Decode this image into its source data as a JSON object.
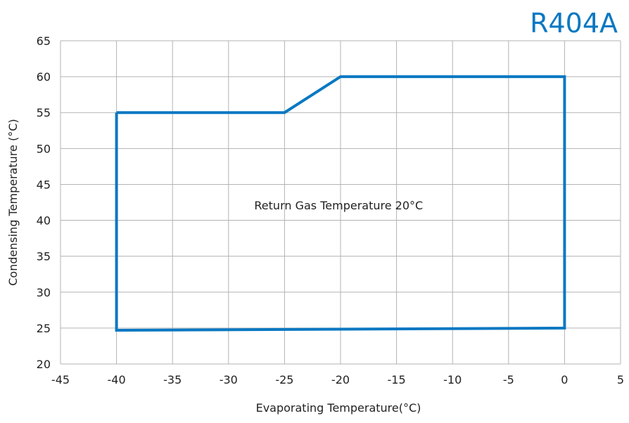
{
  "chart_data": {
    "type": "line",
    "title": "R404A",
    "xlabel": "Evaporating Temperature(°C)",
    "ylabel": "Condensing Temperature (°C)",
    "xlim": [
      -45,
      5
    ],
    "ylim": [
      20,
      65
    ],
    "x_ticks": [
      -45,
      -40,
      -35,
      -30,
      -25,
      -20,
      -15,
      -10,
      -5,
      0,
      5
    ],
    "y_ticks": [
      20,
      25,
      30,
      35,
      40,
      45,
      50,
      55,
      60,
      65
    ],
    "grid": true,
    "annotation": "Return Gas Temperature 20°C",
    "series": [
      {
        "name": "",
        "color": "#0a78c2",
        "x": [
          -40,
          -25,
          -20,
          0,
          0,
          -40,
          -40
        ],
        "y": [
          55,
          55,
          60,
          60,
          25,
          24.7,
          55
        ]
      }
    ]
  }
}
